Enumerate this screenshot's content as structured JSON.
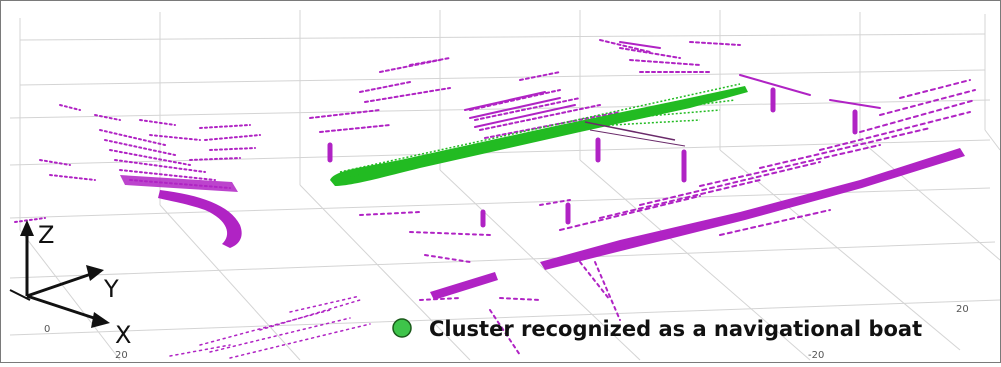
{
  "axes": {
    "labels": {
      "z": "Z",
      "y": "Y",
      "x": "X"
    },
    "ticks_left": [
      "0",
      "20"
    ],
    "ticks_right": [
      "20",
      "-20"
    ]
  },
  "legend": {
    "text": "Cluster recognized as a navigational boat",
    "marker_color": "#3ec44a"
  },
  "colors": {
    "point_cloud": "#b023c4",
    "boat_cluster": "#22bb22",
    "grid": "#d4d4d4",
    "axis": "#111111"
  }
}
